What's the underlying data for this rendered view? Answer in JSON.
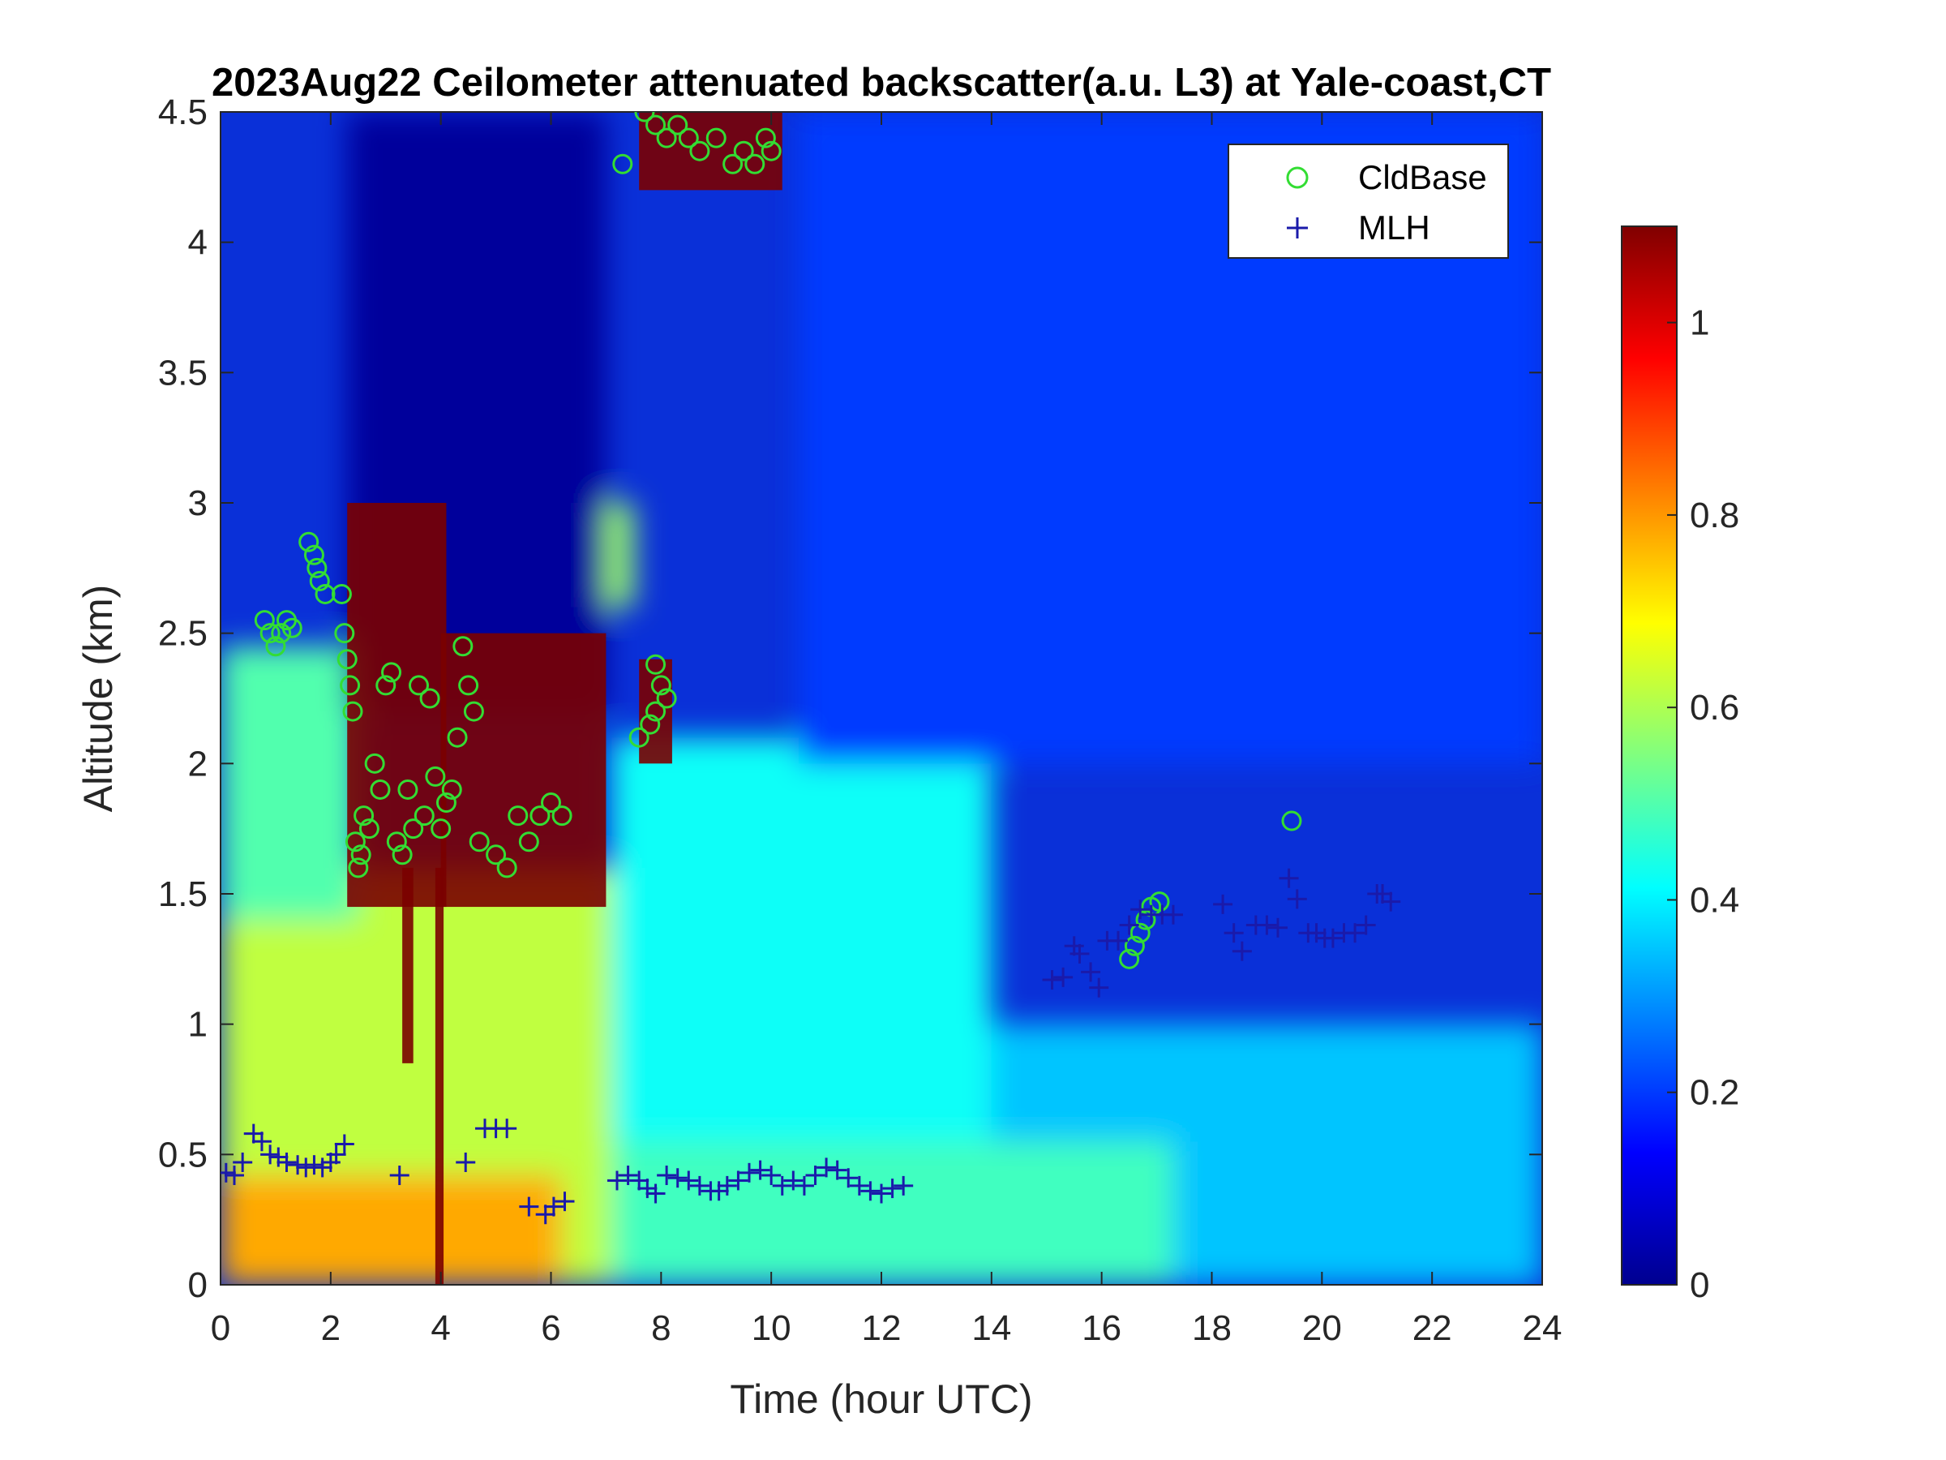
{
  "chart_data": {
    "type": "heatmap",
    "title": "2023Aug22 Ceilometer attenuated backscatter(a.u. L3) at Yale-coast,CT",
    "xlabel": "Time (hour UTC)",
    "ylabel": "Altitude (km)",
    "xlim": [
      0,
      24
    ],
    "ylim": [
      0,
      4.5
    ],
    "x_ticks": [
      "0",
      "2",
      "4",
      "6",
      "8",
      "10",
      "12",
      "14",
      "16",
      "18",
      "20",
      "22",
      "24"
    ],
    "y_ticks": [
      "0",
      "0.5",
      "1",
      "1.5",
      "2",
      "2.5",
      "3",
      "3.5",
      "4",
      "4.5"
    ],
    "colorbar": {
      "colormap": "jet",
      "range": [
        0,
        1.1
      ],
      "ticks": [
        "0",
        "0.2",
        "0.4",
        "0.6",
        "0.8",
        "1"
      ],
      "tick_values": [
        0,
        0.2,
        0.4,
        0.6,
        0.8,
        1.0
      ]
    },
    "legend": {
      "placement": "top-right",
      "entries": [
        {
          "name": "CldBase",
          "marker": "circle",
          "color": "#33dd33"
        },
        {
          "name": "MLH",
          "marker": "plus",
          "color": "#1a1aaa"
        }
      ]
    },
    "series": [
      {
        "name": "CldBase",
        "marker": "circle",
        "color": "#33dd33",
        "points": [
          [
            0.8,
            2.55
          ],
          [
            0.9,
            2.5
          ],
          [
            1.0,
            2.45
          ],
          [
            1.1,
            2.5
          ],
          [
            1.2,
            2.55
          ],
          [
            1.3,
            2.52
          ],
          [
            1.6,
            2.85
          ],
          [
            1.7,
            2.8
          ],
          [
            1.75,
            2.75
          ],
          [
            1.8,
            2.7
          ],
          [
            1.9,
            2.65
          ],
          [
            2.2,
            2.65
          ],
          [
            2.25,
            2.5
          ],
          [
            2.3,
            2.4
          ],
          [
            2.35,
            2.3
          ],
          [
            2.4,
            2.2
          ],
          [
            2.45,
            1.7
          ],
          [
            2.5,
            1.6
          ],
          [
            2.55,
            1.65
          ],
          [
            2.6,
            1.8
          ],
          [
            2.7,
            1.75
          ],
          [
            2.8,
            2.0
          ],
          [
            2.9,
            1.9
          ],
          [
            3.0,
            2.3
          ],
          [
            3.1,
            2.35
          ],
          [
            3.2,
            1.7
          ],
          [
            3.3,
            1.65
          ],
          [
            3.4,
            1.9
          ],
          [
            3.5,
            1.75
          ],
          [
            3.6,
            2.3
          ],
          [
            3.7,
            1.8
          ],
          [
            3.8,
            2.25
          ],
          [
            3.9,
            1.95
          ],
          [
            4.0,
            1.75
          ],
          [
            4.1,
            1.85
          ],
          [
            4.2,
            1.9
          ],
          [
            4.3,
            2.1
          ],
          [
            4.4,
            2.45
          ],
          [
            4.5,
            2.3
          ],
          [
            4.6,
            2.2
          ],
          [
            4.7,
            1.7
          ],
          [
            5.0,
            1.65
          ],
          [
            5.2,
            1.6
          ],
          [
            5.4,
            1.8
          ],
          [
            5.6,
            1.7
          ],
          [
            5.8,
            1.8
          ],
          [
            6.0,
            1.85
          ],
          [
            6.2,
            1.8
          ],
          [
            7.3,
            4.3
          ],
          [
            7.7,
            4.5
          ],
          [
            7.9,
            4.45
          ],
          [
            8.1,
            4.4
          ],
          [
            8.3,
            4.45
          ],
          [
            8.5,
            4.4
          ],
          [
            8.7,
            4.35
          ],
          [
            9.0,
            4.4
          ],
          [
            9.3,
            4.3
          ],
          [
            9.5,
            4.35
          ],
          [
            9.7,
            4.3
          ],
          [
            9.9,
            4.4
          ],
          [
            10.0,
            4.35
          ],
          [
            7.6,
            2.1
          ],
          [
            7.8,
            2.15
          ],
          [
            7.9,
            2.2
          ],
          [
            8.0,
            2.3
          ],
          [
            8.1,
            2.25
          ],
          [
            7.9,
            2.38
          ],
          [
            16.5,
            1.25
          ],
          [
            16.6,
            1.3
          ],
          [
            16.7,
            1.35
          ],
          [
            16.8,
            1.4
          ],
          [
            16.9,
            1.45
          ],
          [
            17.05,
            1.47
          ],
          [
            19.45,
            1.78
          ]
        ]
      },
      {
        "name": "MLH",
        "marker": "plus",
        "color": "#1a1aaa",
        "points": [
          [
            0.1,
            0.43
          ],
          [
            0.25,
            0.42
          ],
          [
            0.4,
            0.47
          ],
          [
            0.6,
            0.58
          ],
          [
            0.75,
            0.55
          ],
          [
            0.9,
            0.5
          ],
          [
            1.05,
            0.49
          ],
          [
            1.2,
            0.47
          ],
          [
            1.4,
            0.46
          ],
          [
            1.55,
            0.45
          ],
          [
            1.7,
            0.46
          ],
          [
            1.85,
            0.45
          ],
          [
            2.0,
            0.47
          ],
          [
            2.1,
            0.5
          ],
          [
            2.25,
            0.54
          ],
          [
            3.25,
            0.42
          ],
          [
            4.45,
            0.47
          ],
          [
            4.8,
            0.6
          ],
          [
            5.0,
            0.6
          ],
          [
            5.2,
            0.6
          ],
          [
            5.6,
            0.3
          ],
          [
            5.9,
            0.27
          ],
          [
            6.05,
            0.3
          ],
          [
            6.25,
            0.32
          ],
          [
            7.2,
            0.4
          ],
          [
            7.4,
            0.42
          ],
          [
            7.6,
            0.4
          ],
          [
            7.75,
            0.37
          ],
          [
            7.9,
            0.35
          ],
          [
            8.1,
            0.42
          ],
          [
            8.3,
            0.41
          ],
          [
            8.5,
            0.4
          ],
          [
            8.7,
            0.38
          ],
          [
            8.9,
            0.36
          ],
          [
            9.05,
            0.36
          ],
          [
            9.2,
            0.38
          ],
          [
            9.4,
            0.4
          ],
          [
            9.6,
            0.43
          ],
          [
            9.8,
            0.44
          ],
          [
            10.0,
            0.42
          ],
          [
            10.2,
            0.38
          ],
          [
            10.4,
            0.4
          ],
          [
            10.6,
            0.38
          ],
          [
            10.8,
            0.42
          ],
          [
            11.0,
            0.45
          ],
          [
            11.2,
            0.44
          ],
          [
            11.4,
            0.41
          ],
          [
            11.6,
            0.38
          ],
          [
            11.8,
            0.36
          ],
          [
            12.0,
            0.35
          ],
          [
            12.2,
            0.37
          ],
          [
            12.4,
            0.38
          ],
          [
            15.1,
            1.17
          ],
          [
            15.3,
            1.18
          ],
          [
            15.5,
            1.3
          ],
          [
            15.6,
            1.27
          ],
          [
            15.8,
            1.2
          ],
          [
            15.95,
            1.14
          ],
          [
            16.1,
            1.32
          ],
          [
            16.3,
            1.32
          ],
          [
            16.5,
            1.38
          ],
          [
            16.7,
            1.44
          ],
          [
            16.9,
            1.42
          ],
          [
            17.1,
            1.42
          ],
          [
            17.3,
            1.42
          ],
          [
            18.2,
            1.46
          ],
          [
            18.4,
            1.35
          ],
          [
            18.55,
            1.28
          ],
          [
            18.8,
            1.38
          ],
          [
            19.0,
            1.38
          ],
          [
            19.2,
            1.37
          ],
          [
            19.4,
            1.56
          ],
          [
            19.55,
            1.48
          ],
          [
            19.75,
            1.35
          ],
          [
            19.9,
            1.35
          ],
          [
            20.05,
            1.33
          ],
          [
            20.2,
            1.33
          ],
          [
            20.4,
            1.35
          ],
          [
            20.6,
            1.35
          ],
          [
            20.8,
            1.38
          ],
          [
            21.0,
            1.5
          ],
          [
            21.1,
            1.5
          ],
          [
            21.25,
            1.47
          ]
        ]
      }
    ],
    "field_regions": [
      {
        "desc": "boundary layer",
        "x0": 0,
        "x1": 7.1,
        "y0": 0,
        "y1": 1.6,
        "value": 0.62
      },
      {
        "desc": "surface layer",
        "x0": 0,
        "x1": 6.2,
        "y0": 0,
        "y1": 0.42,
        "value": 0.78
      },
      {
        "desc": "morning residual layer",
        "x0": 0,
        "x1": 2.5,
        "y0": 1.4,
        "y1": 2.45,
        "value": 0.5
      },
      {
        "desc": "mid-day aerosol",
        "x0": 7.1,
        "x1": 14,
        "y0": 0,
        "y1": 2.1,
        "value": 0.42
      },
      {
        "desc": "afternoon aerosol",
        "x0": 14,
        "x1": 24,
        "y0": 0,
        "y1": 1.0,
        "value": 0.35
      },
      {
        "desc": "afternoon surface",
        "x0": 7.1,
        "x1": 17.3,
        "y0": 0,
        "y1": 0.55,
        "value": 0.48
      },
      {
        "desc": "early high plume",
        "x0": 7.0,
        "x1": 7.5,
        "y0": 2.6,
        "y1": 3.0,
        "value": 0.58
      },
      {
        "desc": "dark clear sky",
        "x0": 2.3,
        "x1": 7.0,
        "y0": 2.2,
        "y1": 4.5,
        "value": 0.03
      },
      {
        "desc": "late cirrus",
        "x0": 10.5,
        "x1": 24,
        "y0": 2.0,
        "y1": 4.5,
        "value": 0.2
      }
    ],
    "cloud_regions": [
      {
        "x0": 2.3,
        "x1": 4.1,
        "y0": 1.45,
        "y1": 3.0
      },
      {
        "x0": 3.3,
        "x1": 3.5,
        "y0": 0.85,
        "y1": 1.6
      },
      {
        "x0": 3.9,
        "x1": 4.05,
        "y0": 0.0,
        "y1": 1.6
      },
      {
        "x0": 4.0,
        "x1": 7.0,
        "y0": 1.45,
        "y1": 2.5
      },
      {
        "x0": 7.6,
        "x1": 10.2,
        "y0": 4.2,
        "y1": 4.5
      },
      {
        "x0": 7.6,
        "x1": 8.2,
        "y0": 2.0,
        "y1": 2.4
      }
    ]
  }
}
